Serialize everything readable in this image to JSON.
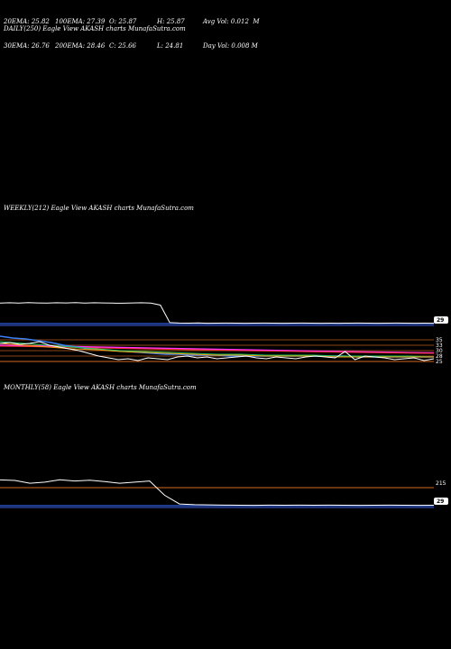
{
  "stats": {
    "row1": [
      "20EMA: 25.82",
      "100EMA: 27.39",
      "O: 25.87",
      "H: 25.87",
      "Avg Vol: 0.012  M"
    ],
    "row2": [
      "30EMA: 26.76",
      "200EMA: 28.46",
      "C: 25.66",
      "L: 24.81",
      "Day Vol: 0.008 M"
    ]
  },
  "panels": {
    "daily": {
      "label": "DAILY(250) Eagle   View  AKASH charts MunafaSutra.com"
    },
    "weekly": {
      "label": "WEEKLY(212) Eagle   View  AKASH charts MunafaSutra.com"
    },
    "monthly": {
      "label": "MONTHLY(58) Eagle   View  AKASH charts MunafaSutra.com"
    }
  },
  "chart_data": [
    {
      "type": "line",
      "title": "WEEKLY(212) Eagle View AKASH charts MunafaSutra.com",
      "series": [
        {
          "values": [
            220,
            222,
            220,
            223,
            221,
            220,
            222,
            221,
            223,
            220,
            222,
            221,
            219,
            218,
            221,
            222,
            220,
            200,
            35,
            31,
            30,
            32,
            29,
            30,
            31,
            30,
            29,
            30,
            31,
            30,
            29,
            30,
            31,
            30,
            29,
            30,
            29,
            30,
            31,
            30,
            29,
            30,
            31,
            30,
            29,
            30,
            29
          ]
        },
        {
          "values": [
            52,
            50,
            49,
            47,
            45,
            42,
            40,
            38,
            37,
            36,
            35,
            34,
            33,
            32,
            32,
            31,
            31,
            31,
            30,
            30,
            30,
            30,
            30,
            30,
            30,
            30,
            30,
            30,
            29,
            29,
            29,
            29,
            29,
            29,
            29
          ]
        }
      ],
      "price_tag": "29",
      "level_ticks": [
        "35",
        "33",
        "30",
        "28",
        "25"
      ]
    },
    {
      "type": "line",
      "title": "MONTHLY(58) Eagle View AKASH charts MunafaSutra.com",
      "series": [
        {
          "values": [
            260,
            255,
            230,
            240,
            262,
            250,
            258,
            245,
            230,
            240,
            250,
            120,
            40,
            34,
            32,
            30,
            29,
            28,
            30,
            29,
            30,
            29,
            30,
            29,
            28,
            29,
            30,
            29,
            28,
            29
          ]
        }
      ],
      "price_tag": "29",
      "level_ticks": [
        "215"
      ]
    }
  ]
}
